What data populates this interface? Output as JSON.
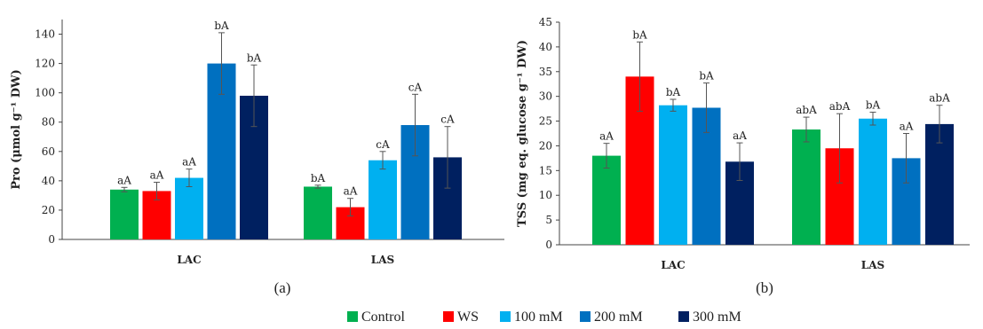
{
  "series_colors": [
    "#00B050",
    "#FF0000",
    "#00B0F0",
    "#0070C0",
    "#002060"
  ],
  "legend": [
    "Control",
    "WS",
    "100 mM",
    "200 mM",
    "300 mM"
  ],
  "chart_data": [
    {
      "type": "bar",
      "panel_label": "(a)",
      "ylabel": "Pro (μmol g⁻¹ DW)",
      "ylim": [
        0,
        150
      ],
      "yticks": [
        0,
        20,
        40,
        60,
        80,
        100,
        120,
        140
      ],
      "categories": [
        "LAC",
        "LAS"
      ],
      "series": [
        {
          "name": "Control",
          "values": [
            34,
            36
          ],
          "errors": [
            1.5,
            1
          ],
          "labels": [
            "aA",
            "bA"
          ]
        },
        {
          "name": "WS",
          "values": [
            33,
            22
          ],
          "errors": [
            6,
            6
          ],
          "labels": [
            "aA",
            "aA"
          ]
        },
        {
          "name": "100 mM",
          "values": [
            42,
            54
          ],
          "errors": [
            6,
            6
          ],
          "labels": [
            "aA",
            "cA"
          ]
        },
        {
          "name": "200 mM",
          "values": [
            120,
            78
          ],
          "errors": [
            21,
            21
          ],
          "labels": [
            "bA",
            "cA"
          ]
        },
        {
          "name": "300 mM",
          "values": [
            98,
            56
          ],
          "errors": [
            21,
            21
          ],
          "labels": [
            "bA",
            "cA"
          ]
        }
      ]
    },
    {
      "type": "bar",
      "panel_label": "(b)",
      "ylabel": "TSS (mg eq. glucose g⁻¹ DW)",
      "ylim": [
        0,
        45
      ],
      "yticks": [
        0,
        5,
        10,
        15,
        20,
        25,
        30,
        35,
        40,
        45
      ],
      "categories": [
        "LAC",
        "LAS"
      ],
      "series": [
        {
          "name": "Control",
          "values": [
            18,
            23.3
          ],
          "errors": [
            2.5,
            2.5
          ],
          "labels": [
            "aA",
            "abA"
          ]
        },
        {
          "name": "WS",
          "values": [
            34,
            19.5
          ],
          "errors": [
            7,
            7
          ],
          "labels": [
            "bA",
            "abA"
          ]
        },
        {
          "name": "100 mM",
          "values": [
            28.2,
            25.5
          ],
          "errors": [
            1.2,
            1.3
          ],
          "labels": [
            "bA",
            "bA"
          ]
        },
        {
          "name": "200 mM",
          "values": [
            27.7,
            17.5
          ],
          "errors": [
            5,
            5
          ],
          "labels": [
            "bA",
            "aA"
          ]
        },
        {
          "name": "300 mM",
          "values": [
            16.8,
            24.4
          ],
          "errors": [
            3.8,
            3.8
          ],
          "labels": [
            "aA",
            "abA"
          ]
        }
      ]
    }
  ]
}
